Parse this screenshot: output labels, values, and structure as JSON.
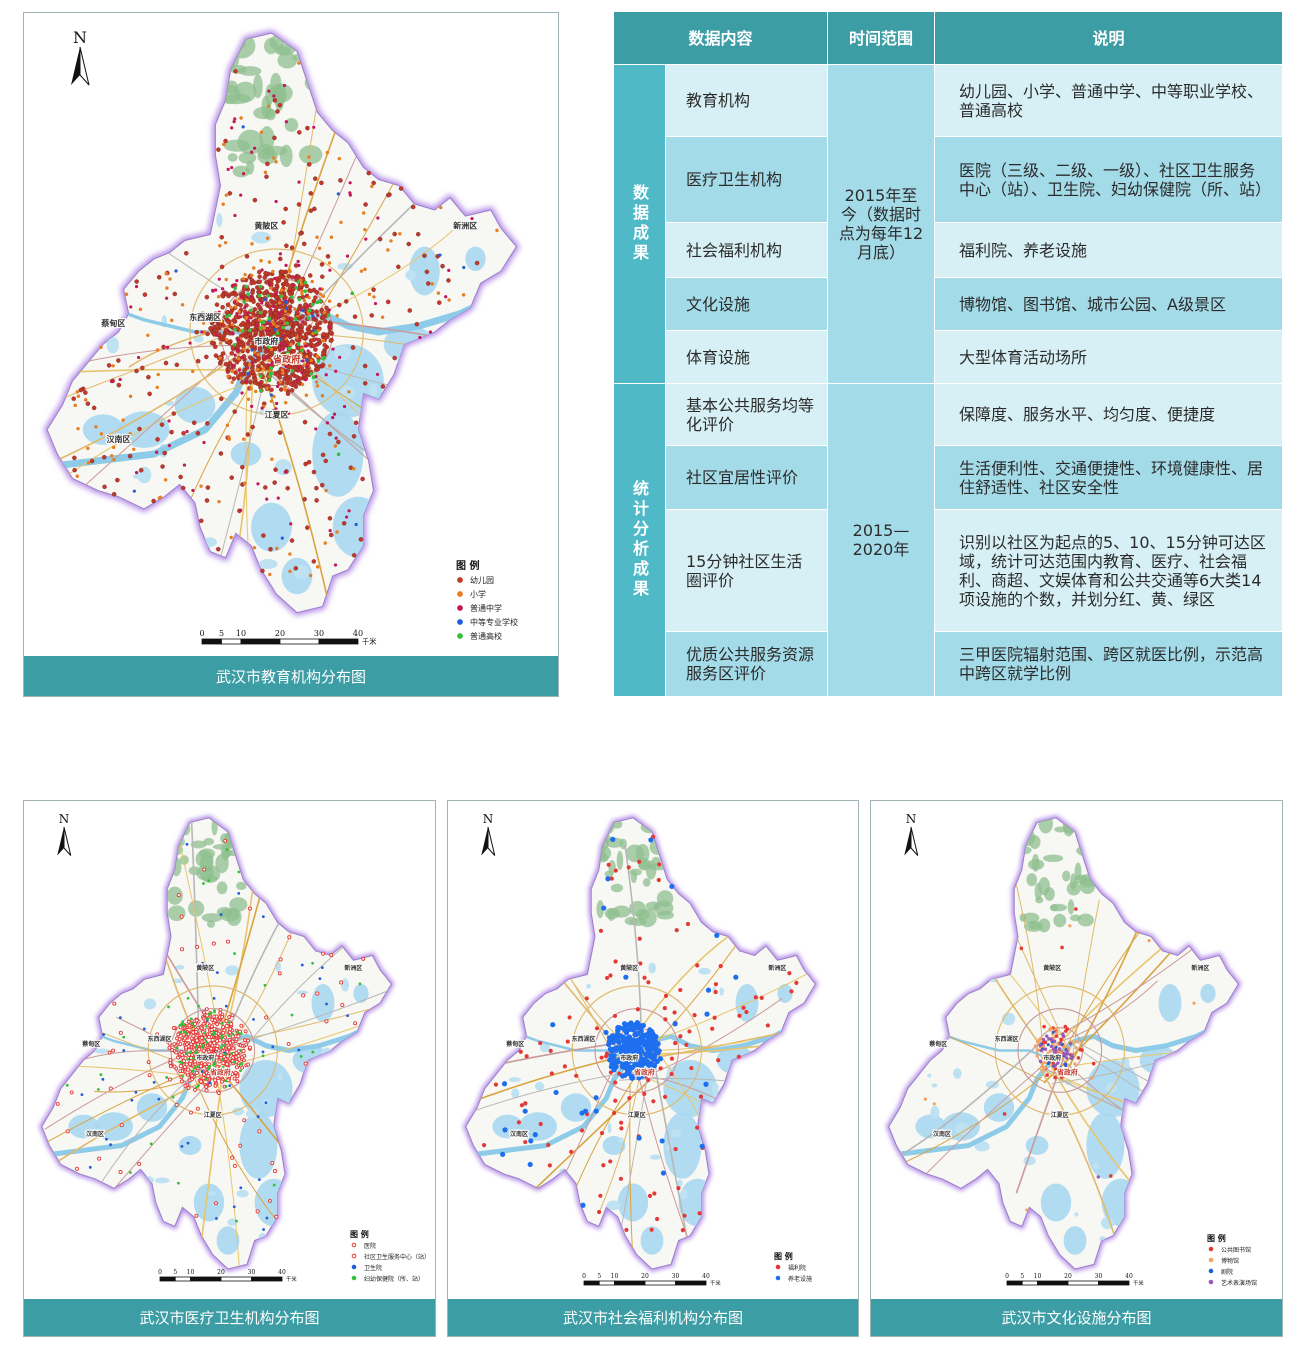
{
  "labels": {
    "north": "N",
    "legend_title": "图  例",
    "scale_unit": "千米",
    "scale_ticks": [
      "0",
      "5",
      "10",
      "20",
      "30",
      "40"
    ],
    "districts": [
      "黄陂区",
      "新洲区",
      "东西湖区",
      "蔡甸区",
      "市政府",
      "省政府",
      "江夏区",
      "汉南区"
    ]
  },
  "maps": [
    {
      "id": "education",
      "caption": "武汉市教育机构分布图",
      "legend": [
        {
          "label": "幼儿园",
          "color": "#c0392b"
        },
        {
          "label": "小学",
          "color": "#e67e22"
        },
        {
          "label": "普通中学",
          "color": "#c2185b"
        },
        {
          "label": "中等专业学校",
          "color": "#1e5fd9"
        },
        {
          "label": "普通高校",
          "color": "#34c13a"
        }
      ]
    },
    {
      "id": "medical",
      "caption": "武汉市医疗卫生机构分布图",
      "legend": [
        {
          "label": "医院",
          "color": "#e53935"
        },
        {
          "label": "社区卫生服务中心（站）",
          "color": "#e53935"
        },
        {
          "label": "卫生院",
          "color": "#1e5fd9"
        },
        {
          "label": "妇幼保健院（所、站）",
          "color": "#34c13a"
        }
      ]
    },
    {
      "id": "welfare",
      "caption": "武汉市社会福利机构分布图",
      "legend": [
        {
          "label": "福利院",
          "color": "#e53935"
        },
        {
          "label": "养老设施",
          "color": "#1e6ff0"
        }
      ]
    },
    {
      "id": "culture",
      "caption": "武汉市文化设施分布图",
      "legend": [
        {
          "label": "公共图书馆",
          "color": "#e53935"
        },
        {
          "label": "博物馆",
          "color": "#f4a261"
        },
        {
          "label": "剧院",
          "color": "#1e5fd9"
        },
        {
          "label": "艺术表演场馆",
          "color": "#9b59b6"
        }
      ]
    }
  ],
  "table": {
    "headers": [
      "数据内容",
      "时间范围",
      "说明"
    ],
    "groups": [
      {
        "name": "数据成果",
        "time": "2015年至今（数据时点为每年12月底）",
        "rows": [
          {
            "item": "教育机构",
            "desc": "幼儿园、小学、普通中学、中等职业学校、普通高校"
          },
          {
            "item": "医疗卫生机构",
            "desc": "医院（三级、二级、一级）、社区卫生服务中心（站）、卫生院、妇幼保健院（所、站）"
          },
          {
            "item": "社会福利机构",
            "desc": "福利院、养老设施"
          },
          {
            "item": "文化设施",
            "desc": "博物馆、图书馆、城市公园、A级景区"
          },
          {
            "item": "体育设施",
            "desc": "大型体育活动场所"
          }
        ]
      },
      {
        "name": "统计分析成果",
        "time": "2015—2020年",
        "rows": [
          {
            "item": "基本公共服务均等化评价",
            "desc": "保障度、服务水平、均匀度、便捷度"
          },
          {
            "item": "社区宜居性评价",
            "desc": "生活便利性、交通便捷性、环境健康性、居住舒适性、社区安全性"
          },
          {
            "item": "15分钟社区生活圈评价",
            "desc": "识别以社区为起点的5、10、15分钟可达区域，统计可达范围内教育、医疗、社会福利、商超、文娱体育和公共交通等6大类14项设施的个数，并划分红、黄、绿区"
          },
          {
            "item": "优质公共服务资源服务区评价",
            "desc": "三甲医院辐射范围、跨区就医比例，示范高中跨区就学比例"
          }
        ]
      }
    ]
  }
}
